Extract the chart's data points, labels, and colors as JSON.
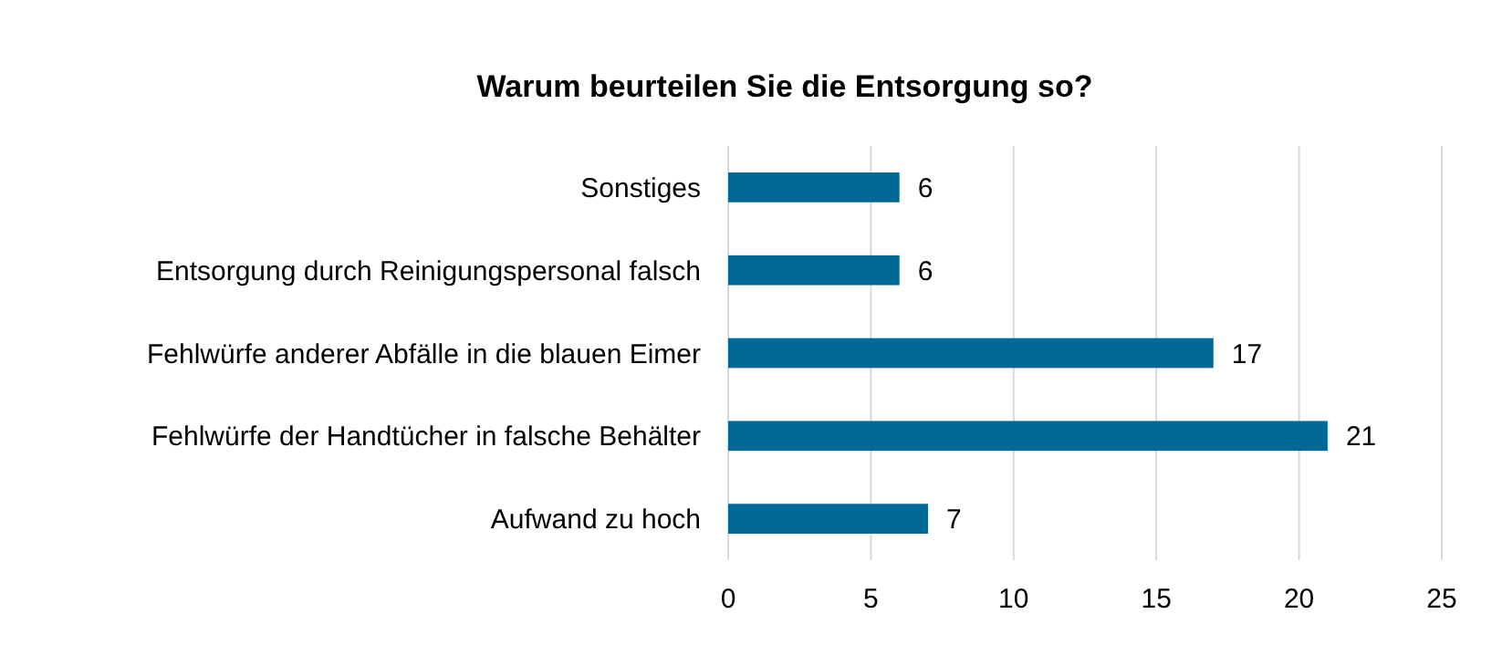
{
  "chart_data": {
    "type": "bar",
    "orientation": "horizontal",
    "title": "Warum beurteilen Sie die Entsorgung so?",
    "categories": [
      "Sonstiges",
      "Entsorgung durch Reinigungspersonal falsch",
      "Fehlwürfe anderer Abfälle in die blauen Eimer",
      "Fehlwürfe der Handtücher in falsche Behälter",
      "Aufwand zu hoch"
    ],
    "values": [
      6,
      6,
      17,
      21,
      7
    ],
    "color": "#006996",
    "xlim": [
      0,
      25
    ],
    "xticks": [
      0,
      5,
      10,
      15,
      20,
      25
    ],
    "grid": "x",
    "data_labels": true
  }
}
